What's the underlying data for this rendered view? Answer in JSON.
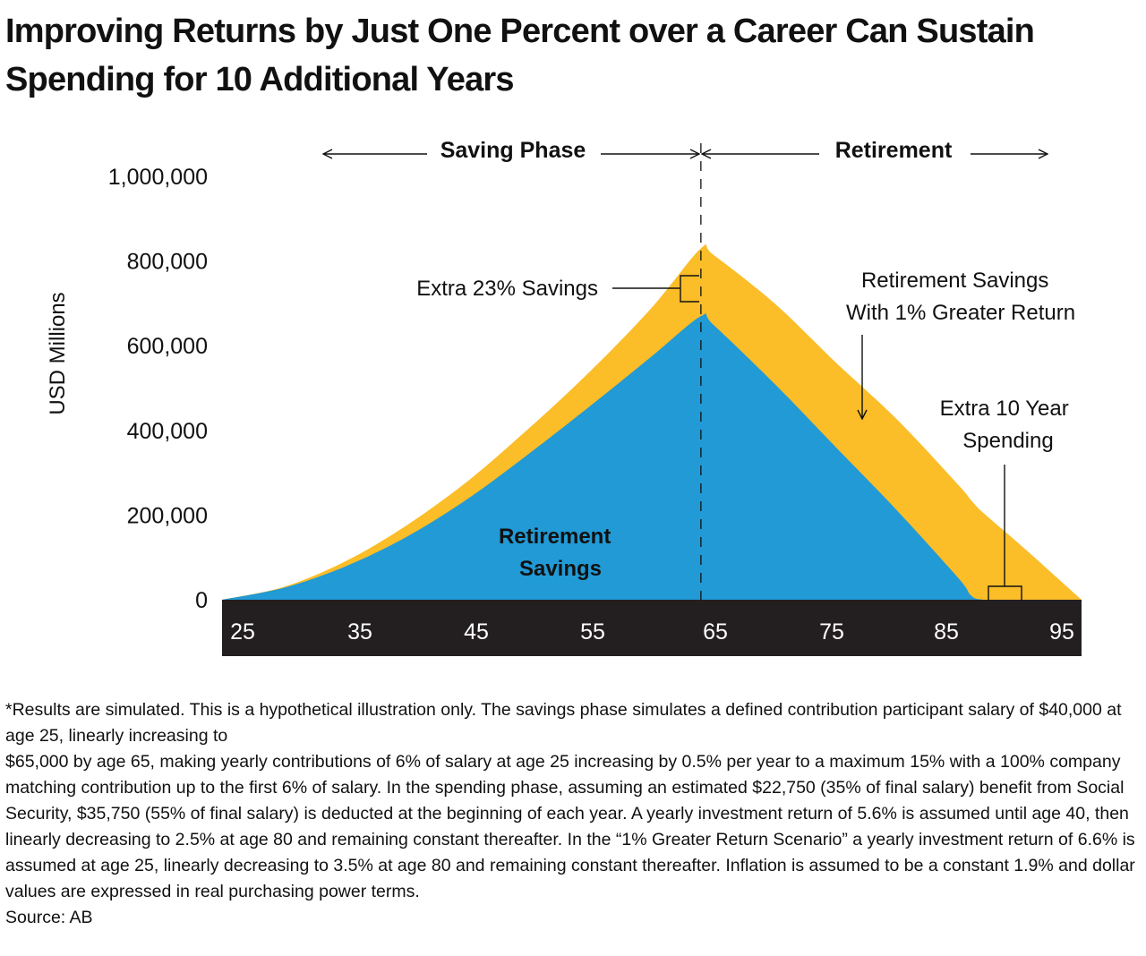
{
  "title": "Improving Returns by Just One Percent over a Career Can Sustain Spending for 10 Additional Years",
  "colors": {
    "base_area": "#219AD6",
    "extra_area": "#FBBD28",
    "axis_band": "#231F20",
    "axis_text": "#FFFFFF",
    "text": "#111111"
  },
  "chart_data": {
    "type": "area",
    "title": "Improving Returns by Just One Percent over a Career Can Sustain Spending for 10 Additional Years",
    "xlabel": "",
    "ylabel": "USD Millions",
    "xlim": [
      25,
      95
    ],
    "ylim": [
      0,
      1000000
    ],
    "x_ticks": [
      25,
      35,
      45,
      55,
      65,
      75,
      85,
      95
    ],
    "x_tick_labels": [
      "25",
      "35",
      "45",
      "55",
      "65",
      "75",
      "85",
      "95"
    ],
    "y_ticks": [
      0,
      200000,
      400000,
      600000,
      800000,
      1000000
    ],
    "y_tick_labels": [
      "0",
      "200,000",
      "400,000",
      "600,000",
      "800,000",
      "1,000,000"
    ],
    "grid": false,
    "legend": "none",
    "x": [
      25,
      30,
      35,
      40,
      45,
      50,
      55,
      60,
      64,
      65,
      70,
      75,
      80,
      85,
      86,
      87,
      90,
      95
    ],
    "series": [
      {
        "name": "Retirement Savings",
        "color": "#219AD6",
        "values": [
          0,
          28000,
          78000,
          148000,
          238000,
          345000,
          458000,
          575000,
          670000,
          650000,
          510000,
          360000,
          210000,
          50000,
          10000,
          0,
          0,
          0
        ]
      },
      {
        "name": "Retirement Savings With 1% Greater Return",
        "color": "#FBBD28",
        "values": [
          0,
          30000,
          90000,
          175000,
          280000,
          405000,
          540000,
          690000,
          830000,
          815000,
          700000,
          560000,
          425000,
          270000,
          235000,
          205000,
          130000,
          0
        ]
      }
    ],
    "phases": [
      {
        "label": "Saving Phase",
        "from": 25,
        "to": 64
      },
      {
        "label": "Retirement",
        "from": 64,
        "to": 95
      }
    ],
    "divider_x": 64,
    "annotations": {
      "inside_label": "Retirement Savings",
      "extra_savings": "Extra 23% Savings",
      "greater_return": "Retirement Savings With 1% Greater Return",
      "extra_years": "Extra 10 Year Spending"
    }
  },
  "footnote": {
    "line1": "*Results are simulated. This is a hypothetical illustration only. The savings phase simulates a defined contribution participant salary of $40,000 at age 25, linearly increasing to",
    "line2": "$65,000 by age 65, making yearly contributions of 6% of salary at age 25 increasing by 0.5% per year to a maximum 15% with a 100% company matching contribution up to the first 6% of salary. In the spending phase, assuming an estimated $22,750 (35% of final salary) benefit from Social Security, $35,750 (55% of final salary) is deducted at the beginning of each year. A yearly investment return of 5.6% is assumed until age 40, then linearly decreasing to 2.5% at age 80 and remaining constant thereafter. In the “1% Greater Return Scenario” a yearly investment return of 6.6% is assumed at age 25, linearly decreasing to 3.5% at age 80 and remaining constant thereafter. Inflation is assumed to be a constant 1.9% and dollar values are expressed in real purchasing power terms.",
    "source": "Source: AB"
  }
}
